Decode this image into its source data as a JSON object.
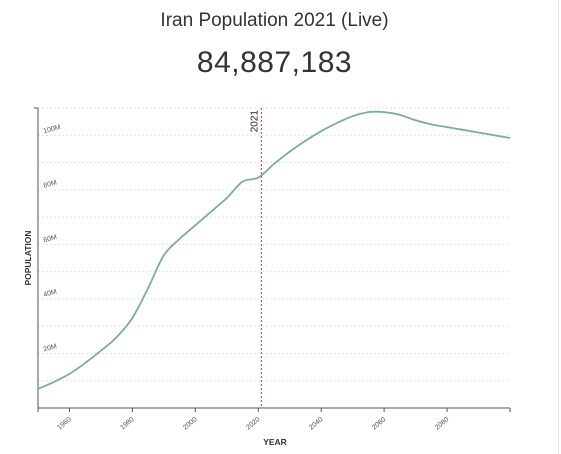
{
  "page": {
    "title": "Iran Population 2021 (Live)",
    "live_count": "84,887,183"
  },
  "chart_data": {
    "type": "line",
    "title": "",
    "xlabel": "YEAR",
    "ylabel": "POPULATION",
    "xlim": [
      1950,
      2100
    ],
    "ylim": [
      0,
      110000000
    ],
    "x_ticks": [
      1960,
      1980,
      2000,
      2020,
      2040,
      2060,
      2080
    ],
    "y_ticks": [
      {
        "value": 20000000,
        "label": "20M"
      },
      {
        "value": 40000000,
        "label": "40M"
      },
      {
        "value": 60000000,
        "label": "60M"
      },
      {
        "value": 80000000,
        "label": "80M"
      },
      {
        "value": 100000000,
        "label": "100M"
      }
    ],
    "grid": true,
    "marker": {
      "x": 2021,
      "label": "2021",
      "color": "#e53935"
    },
    "series": [
      {
        "color": "#7aae9a",
        "x": [
          1950,
          1955,
          1960,
          1965,
          1970,
          1975,
          1980,
          1985,
          1990,
          1995,
          2000,
          2005,
          2010,
          2015,
          2020,
          2025,
          2030,
          2035,
          2040,
          2045,
          2050,
          2055,
          2060,
          2065,
          2070,
          2075,
          2080,
          2085,
          2090,
          2095,
          2100
        ],
        "y": [
          7000000,
          9500000,
          12500000,
          16500000,
          21000000,
          26000000,
          33000000,
          44000000,
          56000000,
          62000000,
          67000000,
          72000000,
          77000000,
          83000000,
          84500000,
          89500000,
          94000000,
          98000000,
          101500000,
          104500000,
          107000000,
          108500000,
          108500000,
          107500000,
          105500000,
          104000000,
          103000000,
          102000000,
          101000000,
          100000000,
          99000000
        ]
      }
    ]
  }
}
